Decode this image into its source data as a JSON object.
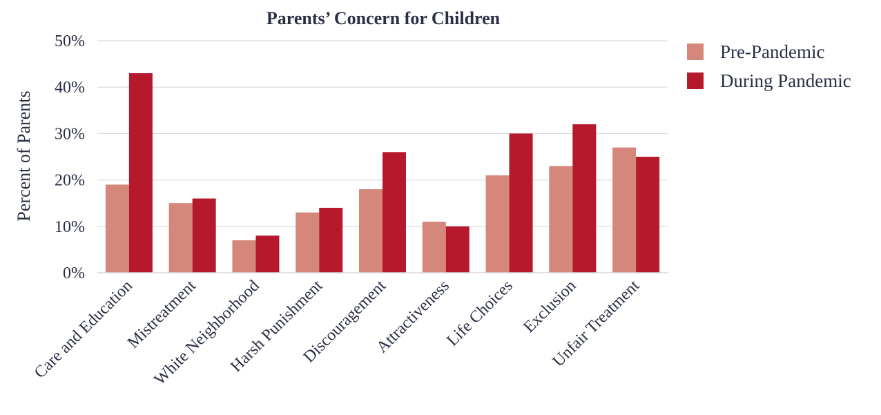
{
  "chart_data": {
    "type": "bar",
    "title": "Parents’ Concern for Children",
    "xlabel": "",
    "ylabel": "Percent of Parents",
    "categories": [
      "Care and Education",
      "Mistreatment",
      "White Neighborhood",
      "Harsh Punishment",
      "Discouragement",
      "Attractiveness",
      "Life Choices",
      "Exclusion",
      "Unfair Treatment"
    ],
    "series": [
      {
        "name": "Pre-Pandemic",
        "color": "#d4877a",
        "values": [
          19,
          15,
          7,
          13,
          18,
          11,
          21,
          23,
          27
        ]
      },
      {
        "name": "During Pandemic",
        "color": "#b5192b",
        "values": [
          43,
          16,
          8,
          14,
          26,
          10,
          30,
          32,
          25
        ]
      }
    ],
    "ylim": [
      0,
      50
    ],
    "yticks": [
      0,
      10,
      20,
      30,
      40,
      50
    ],
    "ytick_labels": [
      "0%",
      "10%",
      "20%",
      "30%",
      "40%",
      "50%"
    ],
    "grid": true,
    "legend_position": "top-right"
  }
}
